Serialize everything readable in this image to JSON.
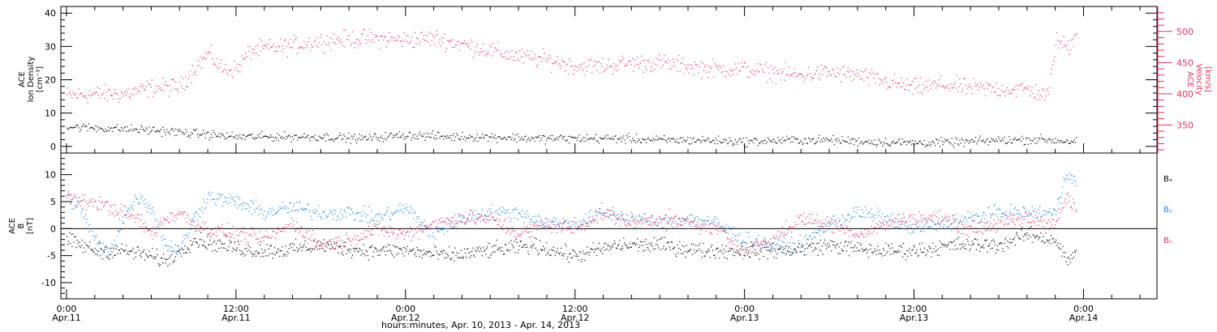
{
  "colors": {
    "density": "#000000",
    "velocity": "#e8325a",
    "bx": "#000000",
    "by": "#1f87e5",
    "bz": "#e8325a"
  },
  "xlabel": "hours:minutes, Apr. 10, 2013 - Apr. 14, 2013",
  "x_ticks": [
    {
      "hour": 0,
      "time": "0:00",
      "date": "Apr.11"
    },
    {
      "hour": 12,
      "time": "12:00",
      "date": "Apr.11"
    },
    {
      "hour": 24,
      "time": "0:00",
      "date": "Apr.12"
    },
    {
      "hour": 36,
      "time": "12:00",
      "date": "Apr.12"
    },
    {
      "hour": 48,
      "time": "0:00",
      "date": "Apr.13"
    },
    {
      "hour": 60,
      "time": "12:00",
      "date": "Apr.13"
    },
    {
      "hour": 72,
      "time": "0:00",
      "date": "Apr.14"
    }
  ],
  "panel1": {
    "left_label": [
      "ACE",
      "Ion Density",
      "[cm⁻³]"
    ],
    "right_label": [
      "ACE",
      "Velocity",
      "[km/s]"
    ]
  },
  "panel2": {
    "left_label": [
      "ACE",
      "B",
      "[nT]"
    ],
    "legend": [
      {
        "label": "Bₓ",
        "color": "#000000"
      },
      {
        "label": "Bᵧ",
        "color": "#1f87e5"
      },
      {
        "label": "Bᵤ",
        "color": "#e8325a"
      }
    ]
  },
  "chart_data": [
    {
      "type": "scatter",
      "x_units": "hours since Apr. 11 0:00",
      "xlim": [
        -0.4,
        77.2
      ],
      "series": [
        {
          "axis": "left",
          "ylim": [
            -2,
            42
          ],
          "yticks": [
            0,
            10,
            20,
            30,
            40
          ],
          "x": [
            0,
            3,
            6,
            9,
            12,
            15,
            18,
            21,
            24,
            27,
            30,
            33,
            36,
            39,
            42,
            45,
            48,
            51,
            54,
            57,
            60,
            63,
            66,
            69,
            71.5
          ],
          "values": [
            6,
            5.5,
            5,
            4,
            3,
            3,
            3,
            2.5,
            3.5,
            3,
            3,
            2.5,
            2.5,
            2.5,
            2,
            2,
            1.5,
            2,
            2,
            1.5,
            1.2,
            1.3,
            2,
            2.2,
            1.5
          ]
        },
        {
          "axis": "right",
          "ylim": [
            305,
            540
          ],
          "yticks": [
            350,
            400,
            450,
            500
          ],
          "x": [
            0,
            2,
            4,
            6,
            8,
            9,
            10,
            11,
            12,
            13,
            15,
            18,
            21,
            24,
            26,
            28,
            30,
            32,
            34,
            36,
            38,
            40,
            42,
            44,
            46,
            48,
            50,
            52,
            54,
            56,
            58,
            60,
            62,
            64,
            66,
            68,
            69.5,
            70,
            71,
            71.5
          ],
          "values": [
            398,
            400,
            400,
            410,
            412,
            440,
            465,
            440,
            440,
            470,
            475,
            485,
            490,
            487,
            490,
            480,
            470,
            460,
            455,
            445,
            445,
            450,
            450,
            445,
            440,
            440,
            435,
            430,
            435,
            430,
            420,
            410,
            415,
            410,
            408,
            408,
            396,
            485,
            475,
            505
          ]
        }
      ]
    },
    {
      "type": "scatter",
      "x_units": "hours since Apr. 11 0:00",
      "xlim": [
        -0.4,
        77.2
      ],
      "ylim": [
        -13,
        14
      ],
      "yticks": [
        -10,
        -5,
        0,
        5,
        10
      ],
      "reference_line": 0,
      "series": [
        {
          "x": [
            0,
            2,
            4,
            6,
            7,
            9,
            11,
            13,
            15,
            18,
            21,
            24,
            27,
            30,
            33,
            36,
            39,
            42,
            45,
            48,
            51,
            54,
            57,
            60,
            63,
            66,
            68,
            70,
            70.8,
            71.5
          ],
          "values": [
            -2,
            -4,
            -4,
            -5,
            -6,
            -2,
            -3,
            -4,
            -4,
            -3,
            -4,
            -4,
            -5,
            -4,
            -3,
            -5,
            -3,
            -3,
            -4,
            -4,
            -4,
            -3,
            -4,
            -4,
            -3,
            -3,
            -1,
            -2,
            -6,
            -4
          ]
        },
        {
          "x": [
            0,
            1,
            2,
            3,
            4,
            5,
            6,
            7,
            8,
            9,
            10,
            12,
            14,
            16,
            18,
            20,
            22,
            24,
            26,
            28,
            30,
            32,
            34,
            36,
            38,
            40,
            42,
            44,
            46,
            48,
            50,
            52,
            54,
            56,
            58,
            60,
            62,
            64,
            66,
            68,
            70,
            70.8,
            71.5
          ],
          "values": [
            6,
            4,
            -2,
            -5,
            2,
            6,
            4,
            -3,
            -4,
            2,
            6,
            5,
            3,
            4,
            3,
            3,
            2,
            4,
            -1,
            2,
            3,
            3,
            1,
            1,
            3,
            2,
            1,
            2,
            1,
            -2,
            -3,
            -3,
            1,
            3,
            2,
            0,
            1,
            2,
            3,
            3,
            3,
            11,
            8
          ]
        },
        {
          "x": [
            0,
            1,
            2,
            3,
            4,
            5,
            6,
            7,
            8,
            9,
            10,
            12,
            14,
            16,
            18,
            20,
            22,
            24,
            26,
            28,
            30,
            32,
            34,
            36,
            38,
            40,
            42,
            44,
            46,
            48,
            50,
            52,
            54,
            56,
            58,
            60,
            62,
            64,
            66,
            68,
            70,
            70.8,
            71.5
          ],
          "values": [
            6,
            5,
            5,
            4,
            3,
            2,
            -1,
            2,
            3,
            1,
            0,
            -1,
            -2,
            1,
            -3,
            -2,
            0,
            -1,
            1,
            2,
            2,
            -1,
            1,
            0,
            3,
            1,
            2,
            1,
            0,
            -4,
            -2,
            2,
            1,
            -1,
            1,
            2,
            2,
            0,
            1,
            2,
            1,
            6,
            3
          ]
        }
      ]
    }
  ]
}
